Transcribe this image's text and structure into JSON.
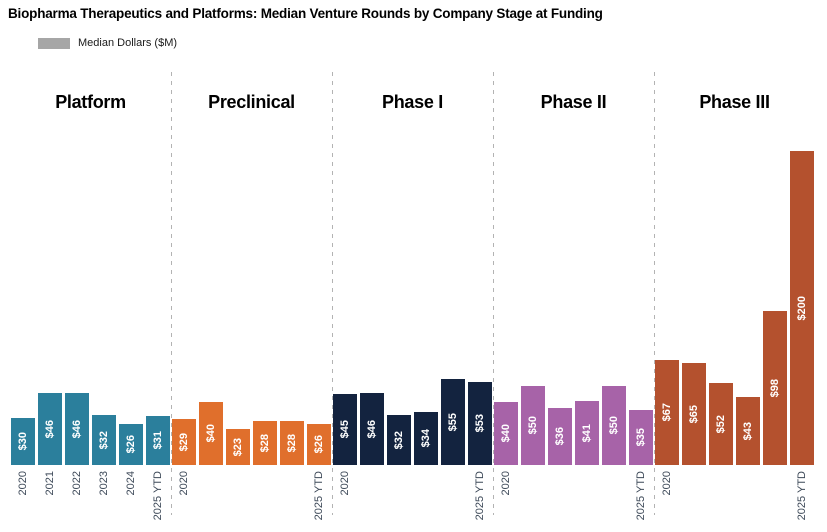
{
  "title": "Biopharma Therapeutics and Platforms: Median Venture Rounds by Company Stage at Funding",
  "legend": {
    "label": "Median Dollars ($M)",
    "swatch_color": "#a6a6a6"
  },
  "chart_data": {
    "type": "bar",
    "title": "Biopharma Therapeutics and Platforms: Median Venture Rounds by Company Stage at Funding",
    "ylabel": "Median Dollars ($M)",
    "xlabel": "",
    "value_prefix": "$",
    "unit": "USD millions",
    "ylim": [
      0,
      210
    ],
    "grid": false,
    "legend_position": "top-left",
    "group_separator_style": "dashed-gray-vertical",
    "categories": [
      "2020",
      "2021",
      "2022",
      "2023",
      "2024",
      "2025 YTD"
    ],
    "groups": [
      {
        "name": "Platform",
        "color": "#2b7f9c",
        "values": [
          30,
          46,
          46,
          32,
          26,
          31
        ],
        "bar_labels": [
          "$30",
          "$46",
          "$46",
          "$32",
          "$26",
          "$31"
        ],
        "tick_labels": [
          "2020",
          "2021",
          "2022",
          "2023",
          "2024",
          "2025 YTD"
        ]
      },
      {
        "name": "Preclinical",
        "color": "#e06f2c",
        "values": [
          29,
          40,
          23,
          28,
          28,
          26
        ],
        "bar_labels": [
          "$29",
          "$40",
          "$23",
          "$28",
          "$28",
          "$26"
        ],
        "tick_labels": [
          "2020",
          "",
          "",
          "",
          "",
          "2025 YTD"
        ]
      },
      {
        "name": "Phase I",
        "color": "#13233f",
        "values": [
          45,
          46,
          32,
          34,
          55,
          53
        ],
        "bar_labels": [
          "$45",
          "$46",
          "$32",
          "$34",
          "$55",
          "$53"
        ],
        "tick_labels": [
          "2020",
          "",
          "",
          "",
          "",
          "2025 YTD"
        ]
      },
      {
        "name": "Phase II",
        "color": "#a763a8",
        "values": [
          40,
          50,
          36,
          41,
          50,
          35
        ],
        "bar_labels": [
          "$40",
          "$50",
          "$36",
          "$41",
          "$50",
          "$35"
        ],
        "tick_labels": [
          "2020",
          "",
          "",
          "",
          "",
          "2025 YTD"
        ]
      },
      {
        "name": "Phase III",
        "color": "#b4512e",
        "values": [
          67,
          65,
          52,
          43,
          98,
          200
        ],
        "bar_labels": [
          "$67",
          "$65",
          "$52",
          "$43",
          "$98",
          "$200"
        ],
        "tick_labels": [
          "2020",
          "",
          "",
          "",
          "",
          "2025 YTD"
        ]
      }
    ]
  }
}
